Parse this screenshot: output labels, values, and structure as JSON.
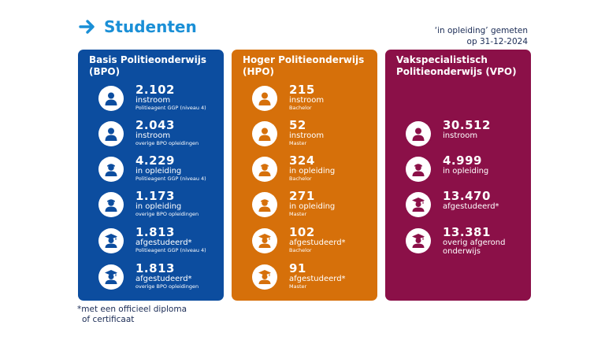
{
  "header": {
    "title": "Studenten"
  },
  "note_top": {
    "line1": "‘in opleiding’ gemeten",
    "line2": "op 31-12-2024"
  },
  "footnote": {
    "line1": "*met een officieel diploma",
    "line2": "of certificaat"
  },
  "colors": {
    "accent": "#1a8fd6",
    "bpo": "#0c4d9f",
    "hpo": "#d6700a",
    "vpo": "#8b1048"
  },
  "panels": {
    "bpo": {
      "title": "Basis Politieonderwijs (BPO)",
      "stats": [
        {
          "icon": "student-icon",
          "value": "2.102",
          "label": "instroom",
          "sub": "Politieagent GGP (niveau 4)"
        },
        {
          "icon": "student-icon",
          "value": "2.043",
          "label": "instroom",
          "sub": "overige BPO opleidingen"
        },
        {
          "icon": "student-cap-icon",
          "value": "4.229",
          "label": "in opleiding",
          "sub": "Politieagent GGP (niveau 4)"
        },
        {
          "icon": "student-cap-icon",
          "value": "1.173",
          "label": "in opleiding",
          "sub": "overige BPO opleidingen"
        },
        {
          "icon": "graduate-icon",
          "value": "1.813",
          "label": "afgestudeerd*",
          "sub": "Politieagent GGP (niveau 4)"
        },
        {
          "icon": "graduate-icon",
          "value": "1.813",
          "label": "afgestudeerd*",
          "sub": "overige BPO opleidingen"
        }
      ]
    },
    "hpo": {
      "title": "Hoger Politieonderwijs (HPO)",
      "stats": [
        {
          "icon": "student-icon",
          "value": "215",
          "label": "instroom",
          "sub": "Bachelor"
        },
        {
          "icon": "student-icon",
          "value": "52",
          "label": "instroom",
          "sub": "Master"
        },
        {
          "icon": "student-cap-icon",
          "value": "324",
          "label": "in opleiding",
          "sub": "Bachelor"
        },
        {
          "icon": "student-cap-icon",
          "value": "271",
          "label": "in opleiding",
          "sub": "Master"
        },
        {
          "icon": "graduate-icon",
          "value": "102",
          "label": "afgestudeerd*",
          "sub": "Bachelor"
        },
        {
          "icon": "graduate-icon",
          "value": "91",
          "label": "afgestudeerd*",
          "sub": "Master"
        }
      ]
    },
    "vpo": {
      "title": "Vakspecialistisch Politieonderwijs (VPO)",
      "stats": [
        {
          "icon": "student-icon",
          "value": "30.512",
          "label": "instroom",
          "sub": ""
        },
        {
          "icon": "student-cap-icon",
          "value": "4.999",
          "label": "in opleiding",
          "sub": ""
        },
        {
          "icon": "graduate-icon",
          "value": "13.470",
          "label": "afgestudeerd*",
          "sub": ""
        },
        {
          "icon": "graduate-icon",
          "value": "13.381",
          "label": "overig afgerond onderwijs",
          "sub": ""
        }
      ]
    }
  }
}
